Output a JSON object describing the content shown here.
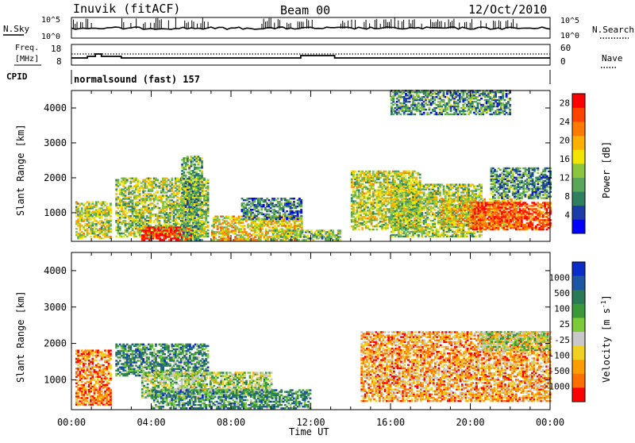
{
  "header": {
    "station": "Inuvik (fitACF)",
    "beam": "Beam 00",
    "date": "12/Oct/2010"
  },
  "top_panels": {
    "nsky_label": "N.Sky",
    "nsky_ticks": [
      "10^5",
      "10^0"
    ],
    "nsearch_label": "N.Search",
    "nsearch_ticks": [
      "10^5",
      "10^0"
    ],
    "freq_label_1": "Freq.",
    "freq_label_2": "[MHz]",
    "freq_ticks": [
      "18",
      "8"
    ],
    "nave_label": "Nave",
    "nave_ticks": [
      "60",
      "0"
    ],
    "cpid_label": "CPID",
    "cpid_value": "normalsound (fast) 157"
  },
  "colors": {
    "power_scale": [
      "#0000ff",
      "#1c3ca8",
      "#2f7f61",
      "#59a85a",
      "#8cc63f",
      "#f2e600",
      "#ffb000",
      "#ff7a00",
      "#ff4400",
      "#ff0000"
    ],
    "velocity_scale": [
      "#0a2cc8",
      "#1d57a2",
      "#2a7a55",
      "#3a9a3a",
      "#7ccc3a",
      "#c8c8c8",
      "#f0d020",
      "#ff9d00",
      "#ff6e00",
      "#ff0000"
    ]
  },
  "chart_data": [
    {
      "type": "heatmap",
      "name": "power",
      "xlabel": "Time UT",
      "ylabel": "Slant Range [km]",
      "xlim_hours": [
        0,
        24
      ],
      "ylim": [
        180,
        4500
      ],
      "x_tick_labels": [
        "00:00",
        "04:00",
        "08:00",
        "12:00",
        "16:00",
        "20:00",
        "00:00"
      ],
      "y_tick_labels": [
        "1000",
        "2000",
        "3000",
        "4000"
      ],
      "colorbar_label": "Power [dB]",
      "colorbar_ticks": [
        "4",
        "8",
        "12",
        "16",
        "20",
        "24",
        "28"
      ],
      "clim": [
        0,
        30
      ],
      "echo_regions": [
        {
          "t": [
            0.2,
            2.0
          ],
          "r": [
            250,
            1300
          ],
          "level": 0.5
        },
        {
          "t": [
            2.2,
            6.8
          ],
          "r": [
            300,
            2000
          ],
          "level": 0.45
        },
        {
          "t": [
            3.5,
            6.0
          ],
          "r": [
            200,
            600
          ],
          "level": 0.95
        },
        {
          "t": [
            5.5,
            6.5
          ],
          "r": [
            200,
            2600
          ],
          "level": 0.35
        },
        {
          "t": [
            7.0,
            11.5
          ],
          "r": [
            200,
            900
          ],
          "level": 0.6
        },
        {
          "t": [
            8.5,
            11.5
          ],
          "r": [
            800,
            1400
          ],
          "level": 0.25
        },
        {
          "t": [
            10.0,
            13.5
          ],
          "r": [
            200,
            500
          ],
          "level": 0.4
        },
        {
          "t": [
            14.0,
            17.5
          ],
          "r": [
            500,
            2200
          ],
          "level": 0.5
        },
        {
          "t": [
            16.0,
            20.5
          ],
          "r": [
            300,
            1800
          ],
          "level": 0.45
        },
        {
          "t": [
            18.5,
            22.5
          ],
          "r": [
            600,
            1400
          ],
          "level": 0.6
        },
        {
          "t": [
            20.0,
            24.0
          ],
          "r": [
            500,
            1300
          ],
          "level": 0.85
        },
        {
          "t": [
            21.0,
            24.0
          ],
          "r": [
            1400,
            2300
          ],
          "level": 0.3
        },
        {
          "t": [
            16.0,
            22.0
          ],
          "r": [
            3800,
            4500
          ],
          "level": 0.3
        }
      ]
    },
    {
      "type": "heatmap",
      "name": "velocity",
      "xlabel": "Time UT",
      "ylabel": "Slant Range [km]",
      "xlim_hours": [
        0,
        24
      ],
      "ylim": [
        180,
        4500
      ],
      "x_tick_labels": [
        "00:00",
        "04:00",
        "08:00",
        "12:00",
        "16:00",
        "20:00",
        "00:00"
      ],
      "y_tick_labels": [
        "1000",
        "2000",
        "3000",
        "4000"
      ],
      "colorbar_label": "Velocity [m s",
      "colorbar_unit_sup": "-1",
      "colorbar_ticks": [
        "1000",
        "500",
        "100",
        "25",
        "-25",
        "-100",
        "-500",
        "-1000"
      ],
      "clim": [
        -1000,
        1000
      ],
      "echo_regions": [
        {
          "t": [
            0.2,
            2.0
          ],
          "r": [
            300,
            1800
          ],
          "level": 0.8
        },
        {
          "t": [
            2.2,
            6.8
          ],
          "r": [
            1100,
            2000
          ],
          "level": 0.3
        },
        {
          "t": [
            3.5,
            10.0
          ],
          "r": [
            500,
            1200
          ],
          "level": 0.5
        },
        {
          "t": [
            4.0,
            12.0
          ],
          "r": [
            200,
            700
          ],
          "level": 0.3
        },
        {
          "t": [
            14.5,
            24.0
          ],
          "r": [
            400,
            2300
          ],
          "level": 0.75
        },
        {
          "t": [
            20.5,
            24.0
          ],
          "r": [
            1800,
            2300
          ],
          "level": 0.5
        }
      ]
    }
  ]
}
